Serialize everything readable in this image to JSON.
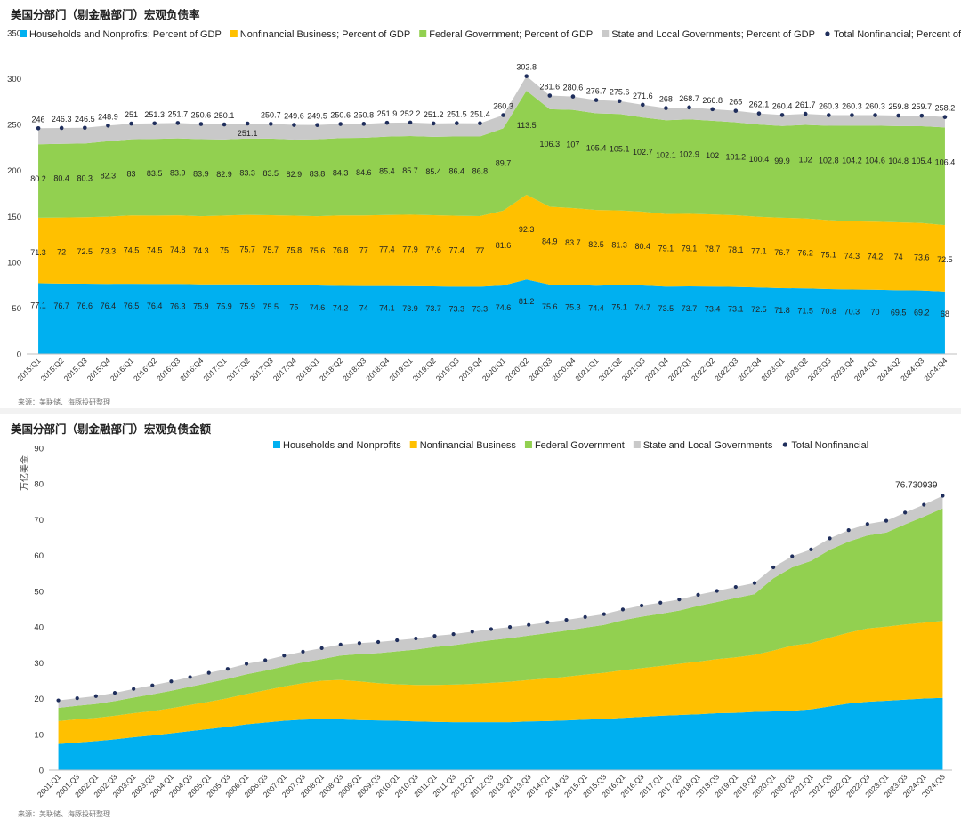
{
  "colors": {
    "households": "#00b0f0",
    "business": "#ffc000",
    "federal": "#92d050",
    "state": "#c9c9c9",
    "total": "#1f2e5c"
  },
  "chart1": {
    "title": "美国分部门（剔金融部门）宏观负债率",
    "source": "来源：美联储、海豚投研整理",
    "chart_data": {
      "type": "area",
      "stacked": true,
      "ylim": [
        0,
        350
      ],
      "yticks": [
        0,
        50,
        100,
        150,
        200,
        250,
        300,
        350
      ],
      "grid": false,
      "legend": "top",
      "categories": [
        "2015:Q1",
        "2015:Q2",
        "2015:Q3",
        "2015:Q4",
        "2016:Q1",
        "2016:Q2",
        "2016:Q3",
        "2016:Q4",
        "2017:Q1",
        "2017:Q2",
        "2017:Q3",
        "2017:Q4",
        "2018:Q1",
        "2018:Q2",
        "2018:Q3",
        "2018:Q4",
        "2019:Q1",
        "2019:Q2",
        "2019:Q3",
        "2019:Q4",
        "2020:Q1",
        "2020:Q2",
        "2020:Q3",
        "2020:Q4",
        "2021:Q1",
        "2021:Q2",
        "2021:Q3",
        "2021:Q4",
        "2022:Q1",
        "2022:Q2",
        "2022:Q3",
        "2022:Q4",
        "2023:Q1",
        "2023:Q2",
        "2023:Q3",
        "2023:Q4",
        "2024:Q1",
        "2024:Q2",
        "2024:Q3",
        "2024:Q4"
      ],
      "series": [
        {
          "name": "Households and Nonprofits; Percent of GDP",
          "values": [
            77.1,
            76.7,
            76.6,
            76.4,
            76.5,
            76.4,
            76.3,
            75.9,
            75.9,
            75.9,
            75.5,
            75,
            74.6,
            74.2,
            74,
            74.1,
            73.9,
            73.7,
            73.3,
            73.3,
            74.6,
            81.2,
            75.6,
            75.3,
            74.4,
            75.1,
            74.7,
            73.5,
            73.7,
            73.4,
            73.1,
            72.5,
            71.8,
            71.5,
            70.8,
            70.3,
            70,
            69.5,
            69.2,
            68
          ]
        },
        {
          "name": "Nonfinancial Business; Percent of GDP",
          "values": [
            71.3,
            72,
            72.5,
            73.3,
            74.5,
            74.5,
            74.8,
            74.3,
            75,
            75.7,
            75.7,
            75.8,
            75.6,
            76.8,
            77,
            77.4,
            77.9,
            77.6,
            77.4,
            77,
            81.6,
            92.3,
            84.9,
            83.7,
            82.5,
            81.3,
            80.4,
            79.1,
            79.1,
            78.7,
            78.1,
            77.1,
            76.7,
            76.2,
            75.1,
            74.3,
            74.2,
            74,
            73.6,
            72.5
          ]
        },
        {
          "name": "Federal Government; Percent of GDP",
          "values": [
            80.2,
            80.4,
            80.3,
            82.3,
            83,
            83.5,
            83.9,
            83.9,
            82.9,
            83.3,
            83.5,
            82.9,
            83.8,
            84.3,
            84.6,
            85.4,
            85.7,
            85.4,
            86.4,
            86.8,
            89.7,
            113.5,
            106.3,
            107,
            105.4,
            105.1,
            102.7,
            102.1,
            102.9,
            102,
            101.2,
            100.4,
            99.9,
            102,
            102.8,
            104.2,
            104.6,
            104.8,
            105.4,
            106.4
          ]
        },
        {
          "name": "State and Local Governments; Percent of GDP"
        },
        {
          "name": "Total Nonfinancial; Percent of GDP",
          "values": [
            246,
            246.3,
            246.5,
            248.9,
            251,
            251.3,
            251.7,
            250.6,
            250.1,
            251.1,
            250.7,
            249.6,
            249.5,
            250.6,
            250.8,
            251.9,
            252.2,
            251.2,
            251.5,
            251.4,
            260.3,
            302.8,
            281.6,
            280.6,
            276.7,
            275.6,
            271.6,
            268,
            268.7,
            266.8,
            265,
            262.1,
            260.4,
            261.7,
            260.3,
            260.3,
            260.3,
            259.8,
            259.7,
            258.2
          ]
        }
      ]
    }
  },
  "chart2": {
    "title": "美国分部门（剔金融部门）宏观负债金额",
    "source": "来源：美联储、海豚投研整理",
    "chart_data": {
      "type": "area",
      "stacked": true,
      "ylabel": "万亿美金",
      "ylim": [
        0,
        90
      ],
      "yticks": [
        0,
        10,
        20,
        30,
        40,
        50,
        60,
        70,
        80,
        90
      ],
      "grid": false,
      "legend": "top",
      "categories": [
        "2001:Q1",
        "2001:Q3",
        "2002:Q1",
        "2002:Q3",
        "2003:Q1",
        "2003:Q3",
        "2004:Q1",
        "2004:Q3",
        "2005:Q1",
        "2005:Q3",
        "2006:Q1",
        "2006:Q3",
        "2007:Q1",
        "2007:Q3",
        "2008:Q1",
        "2008:Q3",
        "2009:Q1",
        "2009:Q3",
        "2010:Q1",
        "2010:Q3",
        "2011:Q1",
        "2011:Q3",
        "2012:Q1",
        "2012:Q3",
        "2013:Q1",
        "2013:Q3",
        "2014:Q1",
        "2014:Q3",
        "2015:Q1",
        "2015:Q3",
        "2016:Q1",
        "2016:Q3",
        "2017:Q1",
        "2017:Q3",
        "2018:Q1",
        "2018:Q3",
        "2019:Q1",
        "2019:Q3",
        "2020:Q1",
        "2020:Q3",
        "2021:Q1",
        "2021:Q3",
        "2022:Q1",
        "2022:Q3",
        "2023:Q1",
        "2023:Q3",
        "2024:Q1",
        "2024:Q3"
      ],
      "last_point_label": "76.730939",
      "series": [
        {
          "name": "Households and Nonprofits",
          "values": [
            7.3,
            7.7,
            8.1,
            8.6,
            9.2,
            9.7,
            10.3,
            10.9,
            11.5,
            12.1,
            12.8,
            13.3,
            13.8,
            14.1,
            14.3,
            14.2,
            14.0,
            13.9,
            13.8,
            13.6,
            13.5,
            13.4,
            13.4,
            13.4,
            13.4,
            13.6,
            13.7,
            13.9,
            14.1,
            14.3,
            14.6,
            14.9,
            15.2,
            15.4,
            15.6,
            15.9,
            16.0,
            16.3,
            16.4,
            16.6,
            17.0,
            17.8,
            18.6,
            19.1,
            19.4,
            19.7,
            20.0,
            20.2
          ]
        },
        {
          "name": "Nonfinancial Business",
          "values": [
            6.4,
            6.5,
            6.5,
            6.6,
            6.7,
            6.8,
            7.0,
            7.3,
            7.6,
            8.0,
            8.5,
            9.0,
            9.6,
            10.2,
            10.7,
            11.0,
            10.8,
            10.4,
            10.2,
            10.2,
            10.3,
            10.5,
            10.7,
            11.0,
            11.3,
            11.6,
            11.9,
            12.2,
            12.6,
            12.9,
            13.3,
            13.6,
            13.9,
            14.3,
            14.7,
            15.1,
            15.5,
            15.9,
            17.0,
            18.2,
            18.5,
            19.2,
            19.8,
            20.5,
            20.7,
            21.0,
            21.2,
            21.5
          ]
        },
        {
          "name": "Federal Government",
          "values": [
            3.7,
            3.8,
            3.9,
            4.1,
            4.4,
            4.7,
            4.9,
            5.1,
            5.3,
            5.4,
            5.5,
            5.5,
            5.6,
            5.8,
            6.0,
            6.8,
            7.6,
            8.4,
            9.2,
            9.9,
            10.6,
            11.0,
            11.5,
            11.9,
            12.2,
            12.4,
            12.7,
            12.9,
            13.1,
            13.4,
            14.0,
            14.4,
            14.6,
            14.9,
            15.6,
            16.0,
            16.6,
            17.0,
            20.2,
            21.9,
            23.0,
            24.6,
            25.5,
            26.0,
            26.3,
            28.0,
            29.7,
            31.5
          ]
        },
        {
          "name": "State and Local Governments",
          "values": [
            2.1,
            2.1,
            2.2,
            2.3,
            2.4,
            2.5,
            2.6,
            2.7,
            2.8,
            2.8,
            2.9,
            2.9,
            3.0,
            3.0,
            3.1,
            3.1,
            3.1,
            3.1,
            3.1,
            3.1,
            3.1,
            3.1,
            3.1,
            3.1,
            3.1,
            3.0,
            3.0,
            3.0,
            3.0,
            3.0,
            3.0,
            3.1,
            3.1,
            3.1,
            3.1,
            3.1,
            3.1,
            3.1,
            3.1,
            3.1,
            3.2,
            3.2,
            3.2,
            3.2,
            3.3,
            3.3,
            3.3,
            3.5
          ]
        },
        {
          "name": "Total Nonfinancial"
        }
      ]
    }
  }
}
